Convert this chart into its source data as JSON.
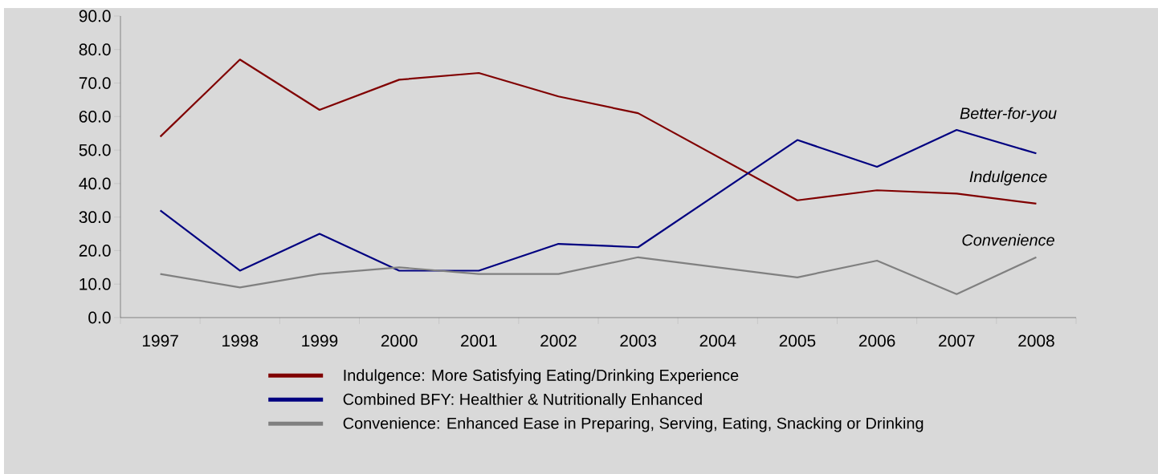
{
  "chart_data": {
    "type": "line",
    "categories": [
      "1997",
      "1998",
      "1999",
      "2000",
      "2001",
      "2002",
      "2003",
      "2004",
      "2005",
      "2006",
      "2007",
      "2008"
    ],
    "series": [
      {
        "name": "Indulgence:  More Satisfying Eating/Drinking Experience",
        "color": "#800000",
        "values": [
          54,
          77,
          62,
          71,
          73,
          66,
          61,
          null,
          35,
          38,
          37,
          34
        ]
      },
      {
        "name": "Combined BFY:  Healthier & Nutritionally Enhanced",
        "color": "#000080",
        "values": [
          32,
          14,
          25,
          14,
          14,
          22,
          21,
          null,
          53,
          45,
          56,
          49
        ]
      },
      {
        "name": "Convenience:  Enhanced Ease in Preparing, Serving, Eating, Snacking or Drinking",
        "color": "#808080",
        "values": [
          13,
          9,
          13,
          15,
          13,
          13,
          18,
          null,
          12,
          17,
          7,
          18
        ]
      }
    ],
    "ylim": [
      0,
      90
    ],
    "yticks": [
      {
        "value": 0,
        "label": "0.0"
      },
      {
        "value": 10,
        "label": "10.0"
      },
      {
        "value": 20,
        "label": "20.0"
      },
      {
        "value": 30,
        "label": "30.0"
      },
      {
        "value": 40,
        "label": "40.0"
      },
      {
        "value": 50,
        "label": "50.0"
      },
      {
        "value": 60,
        "label": "60.0"
      },
      {
        "value": 70,
        "label": "70.0"
      },
      {
        "value": 80,
        "label": "80.0"
      },
      {
        "value": 90,
        "label": "90.0"
      }
    ],
    "annotations": [
      "*Better-for-you*",
      "*Indulgence*",
      "*Convenience*"
    ],
    "legend": "bottom",
    "grid": false,
    "marker": "none",
    "line_style": "solid"
  }
}
